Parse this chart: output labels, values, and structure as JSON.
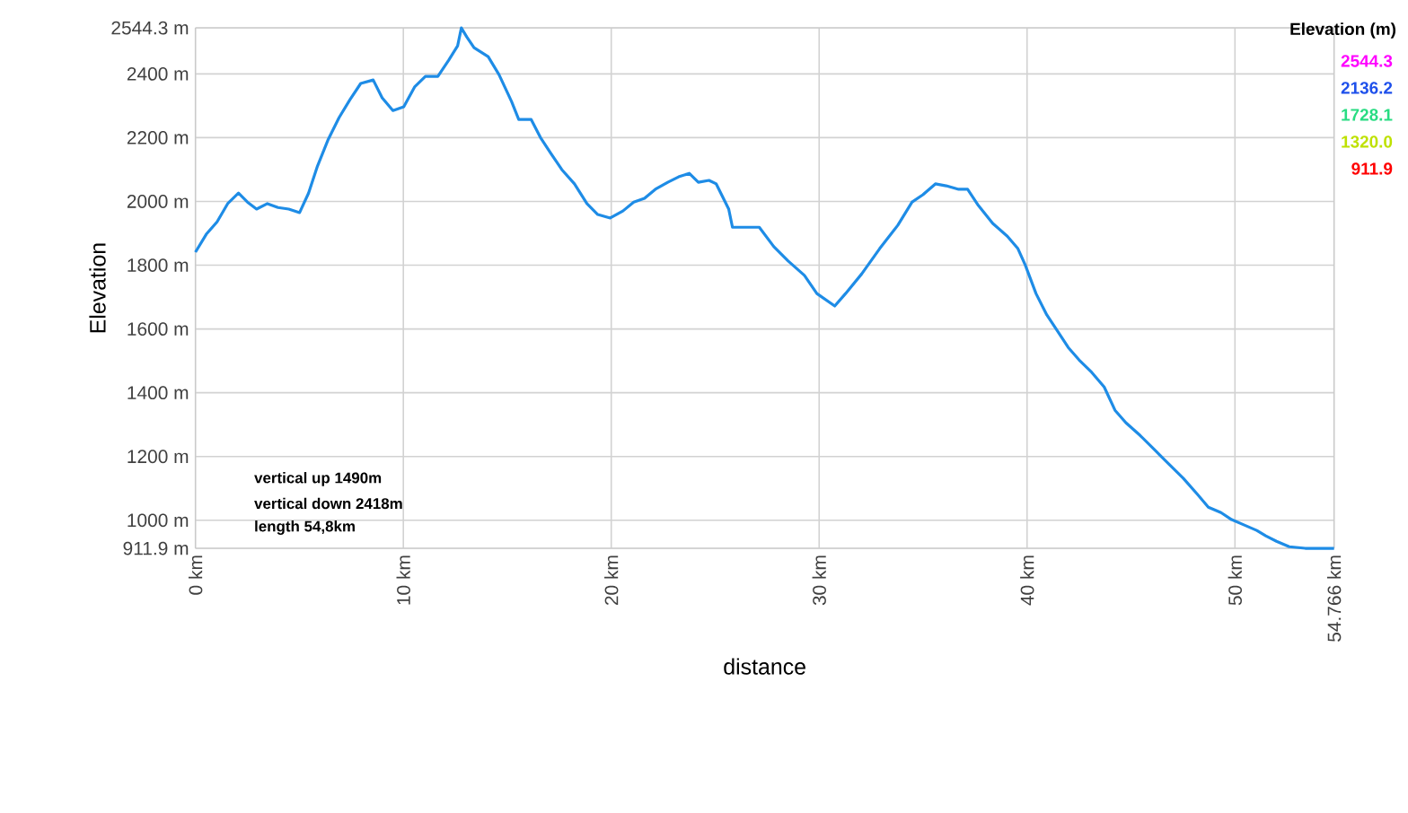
{
  "chart_data": {
    "type": "line",
    "xlabel": "distance",
    "ylabel": "Elevation",
    "annotations": [
      "vertical up 1490m",
      "vertical down 2418m",
      "length 54,8km",
      "Elevation (m)",
      "2544.3",
      "2136.2",
      "1728.1",
      "1320.0",
      "911.9"
    ],
    "x": [
      0,
      0.52,
      1.04,
      1.55,
      2.07,
      2.5,
      2.94,
      3.46,
      3.97,
      4.49,
      5.01,
      5.44,
      5.87,
      6.39,
      6.91,
      7.43,
      7.95,
      8.55,
      8.98,
      9.5,
      10.02,
      10.54,
      11.06,
      11.66,
      12.18,
      12.61,
      12.79,
      13.05,
      13.4,
      14.08,
      14.6,
      15.2,
      15.55,
      16.15,
      16.59,
      17.1,
      17.62,
      18.23,
      18.83,
      19.35,
      19.95,
      20.56,
      21.08,
      21.6,
      22.12,
      22.72,
      23.24,
      23.75,
      24.19,
      24.7,
      25.05,
      25.65,
      25.83,
      26.26,
      27.12,
      27.82,
      28.51,
      29.29,
      29.89,
      30.75,
      31.27,
      32.05,
      32.91,
      33.78,
      34.47,
      34.99,
      35.59,
      36.11,
      36.71,
      37.14,
      37.66,
      38.35,
      39.05,
      39.56,
      39.91,
      40.43,
      40.95,
      41.47,
      41.98,
      42.5,
      43.11,
      43.71,
      44.23,
      44.75,
      45.44,
      46.13,
      46.82,
      47.51,
      48.2,
      48.72,
      49.33,
      49.84,
      50.45,
      51.05,
      51.48,
      52.0,
      52.61,
      53.38,
      54.766
    ],
    "series": [
      {
        "color": "#1e8ce6",
        "values": [
          1841,
          1897,
          1936,
          1993,
          2026,
          1998,
          1976,
          1993,
          1981,
          1976,
          1965,
          2026,
          2111,
          2195,
          2263,
          2319,
          2370,
          2381,
          2325,
          2285,
          2297,
          2359,
          2392,
          2392,
          2443,
          2488,
          2544,
          2516,
          2482,
          2454,
          2398,
          2314,
          2257,
          2257,
          2201,
          2150,
          2100,
          2055,
          1993,
          1959,
          1948,
          1970,
          1998,
          2010,
          2038,
          2060,
          2077,
          2088,
          2060,
          2066,
          2055,
          1976,
          1919,
          1919,
          1919,
          1858,
          1813,
          1768,
          1711,
          1672,
          1711,
          1773,
          1852,
          1925,
          1998,
          2021,
          2055,
          2049,
          2038,
          2038,
          1987,
          1931,
          1891,
          1852,
          1801,
          1711,
          1644,
          1593,
          1542,
          1503,
          1464,
          1418,
          1345,
          1306,
          1266,
          1221,
          1176,
          1132,
          1081,
          1041,
          1024,
          1002,
          985,
          968,
          951,
          934,
          917,
          912,
          912
        ]
      }
    ],
    "xlim": [
      0,
      54.766
    ],
    "xticks": [
      {
        "value": 0,
        "label": "0 km"
      },
      {
        "value": 10,
        "label": "10 km"
      },
      {
        "value": 20,
        "label": "20 km"
      },
      {
        "value": 30,
        "label": "30 km"
      },
      {
        "value": 40,
        "label": "40 km"
      },
      {
        "value": 50,
        "label": "50 km"
      },
      {
        "value": 54.766,
        "label": "54.766 km"
      }
    ],
    "ylim": [
      911.9,
      2544.3
    ],
    "yticks": [
      {
        "value": 911.9,
        "label": "911.9 m"
      },
      {
        "value": 1000,
        "label": "1000 m"
      },
      {
        "value": 1200,
        "label": "1200 m"
      },
      {
        "value": 1400,
        "label": "1400 m"
      },
      {
        "value": 1600,
        "label": "1600 m"
      },
      {
        "value": 1800,
        "label": "1800 m"
      },
      {
        "value": 2000,
        "label": "2000 m"
      },
      {
        "value": 2200,
        "label": "2200 m"
      },
      {
        "value": 2400,
        "label": "2400 m"
      },
      {
        "value": 2544.3,
        "label": "2544.3 m"
      }
    ],
    "grid": true
  }
}
